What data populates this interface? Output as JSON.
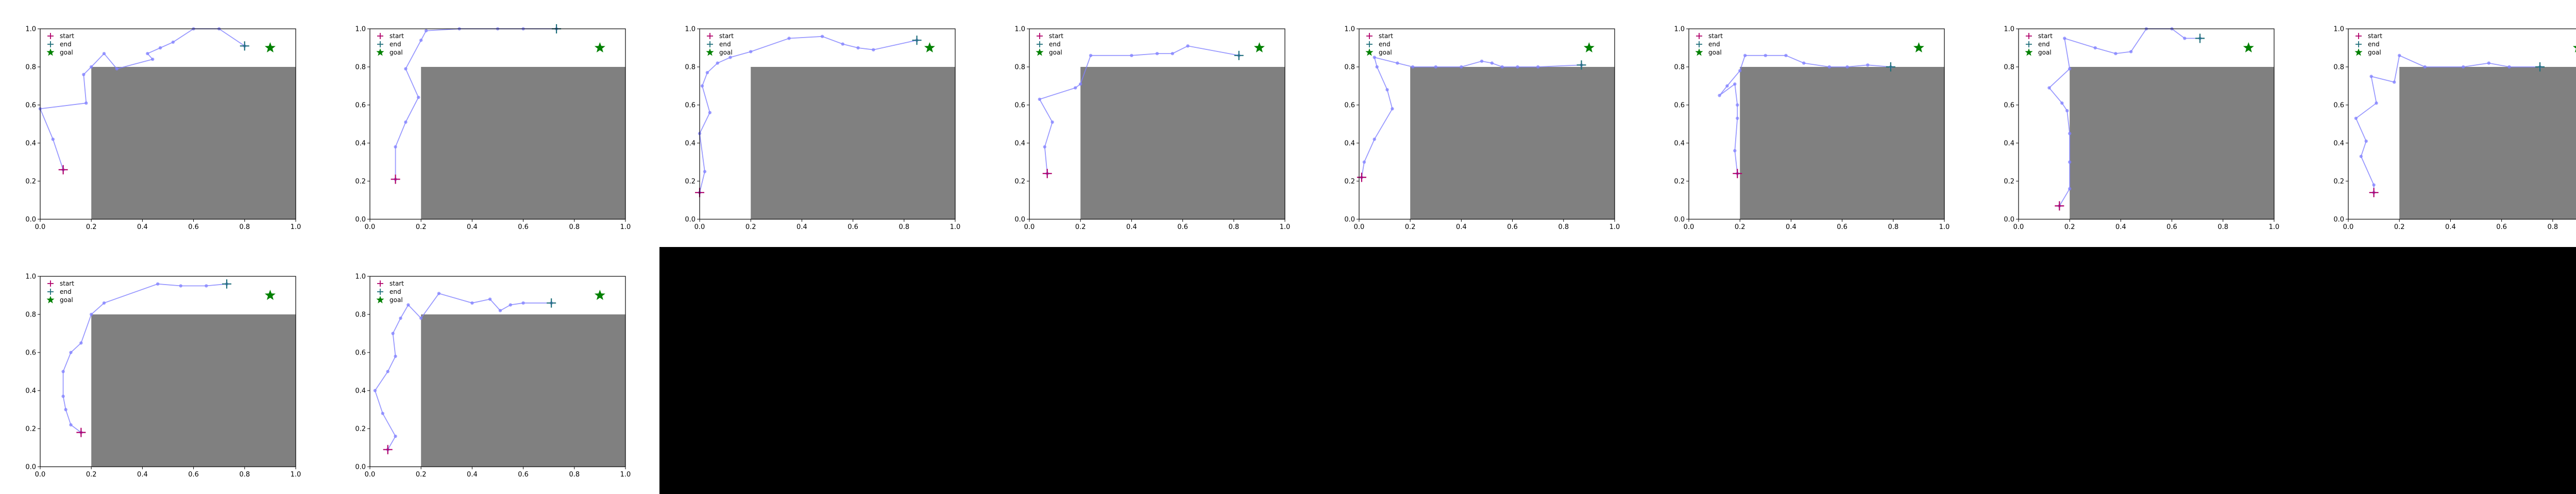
{
  "colors": {
    "obstacle": "#808080",
    "path": "#8080ff",
    "start": "#b0006a",
    "end": "#1f6f7a",
    "goal": "#008000",
    "axes": "#000000",
    "background": "#ffffff",
    "empty_area": "#000000"
  },
  "legend": {
    "start": "start",
    "end": "end",
    "goal": "goal",
    "placement": "top-left"
  },
  "axis": {
    "xlim": [
      0,
      1
    ],
    "ylim": [
      0,
      1
    ],
    "xticks": [
      "0.0",
      "0.2",
      "0.4",
      "0.6",
      "0.8",
      "1.0"
    ],
    "yticks": [
      "0.0",
      "0.2",
      "0.4",
      "0.6",
      "0.8",
      "1.0"
    ],
    "grid": false
  },
  "obstacle": {
    "x": [
      0.2,
      1.0
    ],
    "y": [
      0.0,
      0.8
    ]
  },
  "goal": [
    0.9,
    0.9
  ],
  "chart_data": [
    {
      "type": "line",
      "start": [
        0.09,
        0.26
      ],
      "end": [
        0.8,
        0.91
      ],
      "path": [
        [
          0.09,
          0.26
        ],
        [
          0.05,
          0.42
        ],
        [
          0.0,
          0.58
        ],
        [
          0.18,
          0.61
        ],
        [
          0.17,
          0.76
        ],
        [
          0.2,
          0.8
        ],
        [
          0.25,
          0.87
        ],
        [
          0.3,
          0.79
        ],
        [
          0.44,
          0.84
        ],
        [
          0.42,
          0.87
        ],
        [
          0.47,
          0.9
        ],
        [
          0.52,
          0.93
        ],
        [
          0.6,
          1.0
        ],
        [
          0.7,
          1.0
        ],
        [
          0.8,
          0.91
        ]
      ]
    },
    {
      "type": "line",
      "start": [
        0.1,
        0.21
      ],
      "end": [
        0.73,
        1.0
      ],
      "path": [
        [
          0.1,
          0.21
        ],
        [
          0.1,
          0.38
        ],
        [
          0.14,
          0.51
        ],
        [
          0.19,
          0.64
        ],
        [
          0.14,
          0.79
        ],
        [
          0.2,
          0.94
        ],
        [
          0.22,
          0.99
        ],
        [
          0.35,
          1.0
        ],
        [
          0.5,
          1.0
        ],
        [
          0.6,
          1.0
        ],
        [
          0.73,
          1.0
        ]
      ]
    },
    {
      "type": "line",
      "start": [
        0.0,
        0.14
      ],
      "end": [
        0.85,
        0.94
      ],
      "path": [
        [
          0.0,
          0.14
        ],
        [
          0.02,
          0.25
        ],
        [
          0.0,
          0.45
        ],
        [
          0.04,
          0.56
        ],
        [
          0.01,
          0.7
        ],
        [
          0.03,
          0.77
        ],
        [
          0.07,
          0.82
        ],
        [
          0.12,
          0.85
        ],
        [
          0.2,
          0.88
        ],
        [
          0.35,
          0.95
        ],
        [
          0.48,
          0.96
        ],
        [
          0.56,
          0.92
        ],
        [
          0.62,
          0.9
        ],
        [
          0.68,
          0.89
        ],
        [
          0.85,
          0.94
        ]
      ]
    },
    {
      "type": "line",
      "start": [
        0.07,
        0.24
      ],
      "end": [
        0.82,
        0.86
      ],
      "path": [
        [
          0.07,
          0.24
        ],
        [
          0.06,
          0.38
        ],
        [
          0.09,
          0.51
        ],
        [
          0.04,
          0.63
        ],
        [
          0.18,
          0.69
        ],
        [
          0.2,
          0.71
        ],
        [
          0.24,
          0.86
        ],
        [
          0.4,
          0.86
        ],
        [
          0.5,
          0.87
        ],
        [
          0.56,
          0.87
        ],
        [
          0.62,
          0.91
        ],
        [
          0.82,
          0.86
        ]
      ]
    },
    {
      "type": "line",
      "start": [
        0.01,
        0.22
      ],
      "end": [
        0.87,
        0.81
      ],
      "path": [
        [
          0.01,
          0.22
        ],
        [
          0.02,
          0.3
        ],
        [
          0.06,
          0.42
        ],
        [
          0.13,
          0.58
        ],
        [
          0.11,
          0.68
        ],
        [
          0.07,
          0.8
        ],
        [
          0.06,
          0.85
        ],
        [
          0.15,
          0.82
        ],
        [
          0.21,
          0.8
        ],
        [
          0.3,
          0.8
        ],
        [
          0.4,
          0.8
        ],
        [
          0.48,
          0.83
        ],
        [
          0.52,
          0.82
        ],
        [
          0.56,
          0.8
        ],
        [
          0.62,
          0.8
        ],
        [
          0.7,
          0.8
        ],
        [
          0.87,
          0.81
        ]
      ]
    },
    {
      "type": "line",
      "start": [
        0.19,
        0.24
      ],
      "end": [
        0.79,
        0.8
      ],
      "path": [
        [
          0.19,
          0.24
        ],
        [
          0.18,
          0.36
        ],
        [
          0.19,
          0.53
        ],
        [
          0.19,
          0.6
        ],
        [
          0.18,
          0.71
        ],
        [
          0.12,
          0.65
        ],
        [
          0.15,
          0.7
        ],
        [
          0.2,
          0.78
        ],
        [
          0.22,
          0.86
        ],
        [
          0.3,
          0.86
        ],
        [
          0.38,
          0.86
        ],
        [
          0.45,
          0.82
        ],
        [
          0.55,
          0.8
        ],
        [
          0.62,
          0.8
        ],
        [
          0.7,
          0.81
        ],
        [
          0.79,
          0.8
        ]
      ]
    },
    {
      "type": "line",
      "start": [
        0.16,
        0.07
      ],
      "end": [
        0.71,
        0.95
      ],
      "path": [
        [
          0.16,
          0.07
        ],
        [
          0.2,
          0.16
        ],
        [
          0.2,
          0.3
        ],
        [
          0.2,
          0.45
        ],
        [
          0.19,
          0.57
        ],
        [
          0.17,
          0.61
        ],
        [
          0.12,
          0.69
        ],
        [
          0.2,
          0.79
        ],
        [
          0.18,
          0.95
        ],
        [
          0.3,
          0.9
        ],
        [
          0.38,
          0.87
        ],
        [
          0.44,
          0.88
        ],
        [
          0.5,
          1.0
        ],
        [
          0.6,
          1.0
        ],
        [
          0.65,
          0.95
        ],
        [
          0.71,
          0.95
        ]
      ]
    },
    {
      "type": "line",
      "start": [
        0.1,
        0.14
      ],
      "end": [
        0.75,
        0.8
      ],
      "path": [
        [
          0.1,
          0.14
        ],
        [
          0.1,
          0.18
        ],
        [
          0.05,
          0.33
        ],
        [
          0.07,
          0.41
        ],
        [
          0.03,
          0.53
        ],
        [
          0.11,
          0.61
        ],
        [
          0.09,
          0.75
        ],
        [
          0.18,
          0.72
        ],
        [
          0.2,
          0.86
        ],
        [
          0.3,
          0.8
        ],
        [
          0.45,
          0.8
        ],
        [
          0.55,
          0.82
        ],
        [
          0.63,
          0.8
        ],
        [
          0.75,
          0.8
        ]
      ]
    },
    {
      "type": "line",
      "start": [
        0.16,
        0.18
      ],
      "end": [
        0.73,
        0.96
      ],
      "path": [
        [
          0.16,
          0.18
        ],
        [
          0.12,
          0.22
        ],
        [
          0.1,
          0.3
        ],
        [
          0.09,
          0.37
        ],
        [
          0.09,
          0.5
        ],
        [
          0.12,
          0.6
        ],
        [
          0.16,
          0.65
        ],
        [
          0.2,
          0.8
        ],
        [
          0.25,
          0.86
        ],
        [
          0.46,
          0.96
        ],
        [
          0.55,
          0.95
        ],
        [
          0.65,
          0.95
        ],
        [
          0.73,
          0.96
        ]
      ]
    },
    {
      "type": "line",
      "start": [
        0.07,
        0.09
      ],
      "end": [
        0.71,
        0.86
      ],
      "path": [
        [
          0.07,
          0.09
        ],
        [
          0.1,
          0.16
        ],
        [
          0.05,
          0.28
        ],
        [
          0.02,
          0.4
        ],
        [
          0.07,
          0.5
        ],
        [
          0.1,
          0.58
        ],
        [
          0.09,
          0.7
        ],
        [
          0.12,
          0.78
        ],
        [
          0.15,
          0.85
        ],
        [
          0.2,
          0.78
        ],
        [
          0.27,
          0.91
        ],
        [
          0.4,
          0.86
        ],
        [
          0.47,
          0.88
        ],
        [
          0.51,
          0.82
        ],
        [
          0.55,
          0.85
        ],
        [
          0.6,
          0.86
        ],
        [
          0.71,
          0.86
        ]
      ]
    }
  ]
}
